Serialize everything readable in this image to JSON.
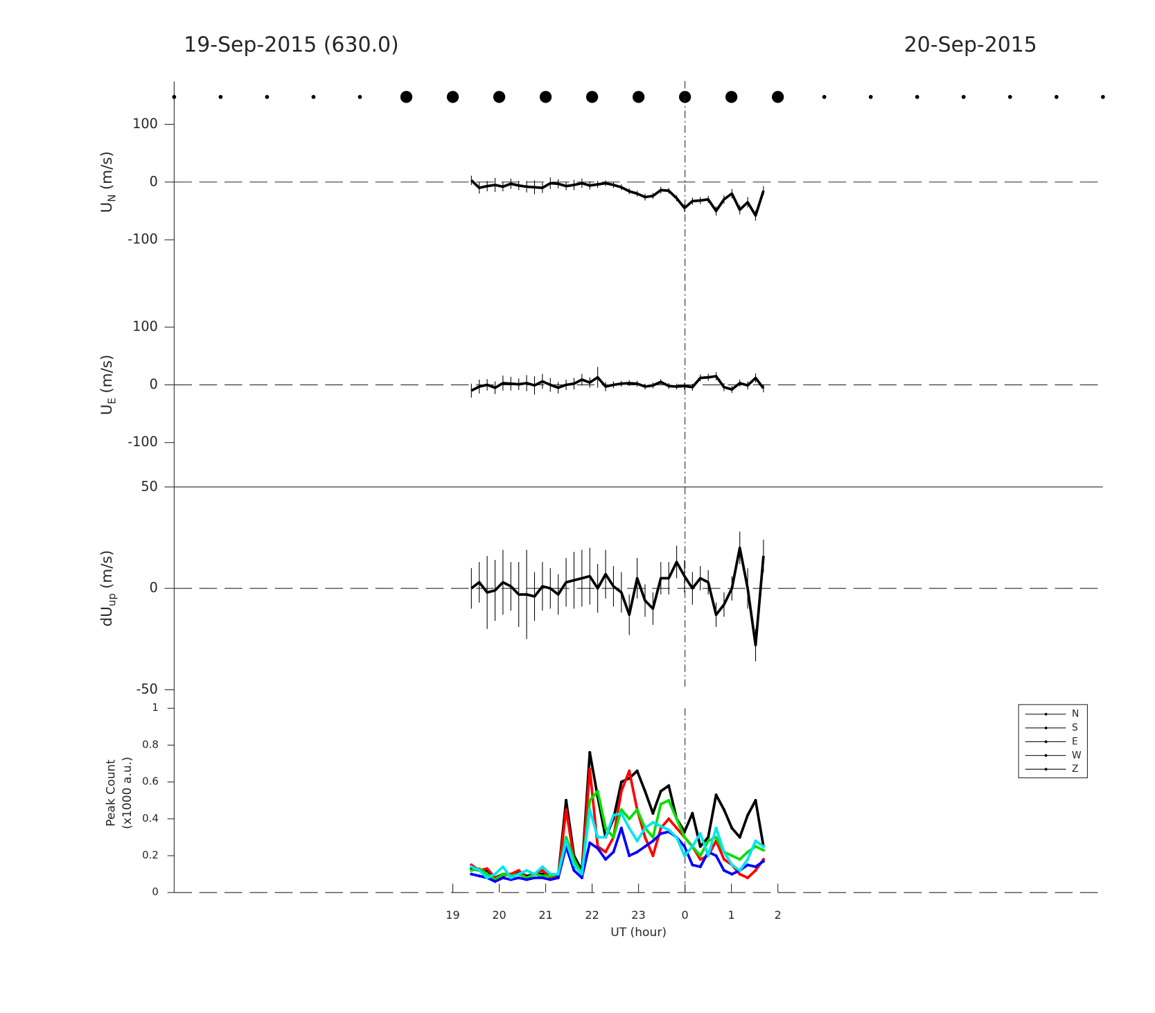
{
  "header": {
    "left": "19-Sep-2015 (630.0)",
    "right": "20-Sep-2015"
  },
  "chart_data": [
    {
      "type": "markers",
      "xlim": [
        13,
        33
      ],
      "x": [
        13,
        14,
        15,
        16,
        17,
        18,
        19,
        20,
        21,
        22,
        23,
        24,
        25,
        26,
        27,
        28,
        29,
        30,
        31,
        32,
        33
      ],
      "values": [
        1,
        1,
        1,
        1,
        1,
        3,
        3,
        3,
        3,
        3,
        3,
        3,
        3,
        3,
        1,
        1,
        1,
        1,
        1,
        1,
        1
      ],
      "color": "#000000"
    },
    {
      "type": "line",
      "ylabel": {
        "main": "U",
        "sub": "N",
        "unit": "(m/s)"
      },
      "xlim": [
        13,
        33
      ],
      "ylim": [
        -175,
        175
      ],
      "yticks": [
        -100,
        0,
        100
      ],
      "zero_line": true,
      "vline": 24,
      "x": [
        19.4,
        19.57,
        19.74,
        19.91,
        20.08,
        20.25,
        20.42,
        20.59,
        20.76,
        20.93,
        21.1,
        21.27,
        21.44,
        21.61,
        21.78,
        21.95,
        22.12,
        22.29,
        22.46,
        22.63,
        22.8,
        22.97,
        23.14,
        23.31,
        23.48,
        23.65,
        23.82,
        23.99,
        24.16,
        24.33,
        24.5,
        24.67,
        24.84,
        25.01,
        25.18,
        25.35,
        25.52,
        25.69
      ],
      "series": [
        {
          "color": "#000000",
          "values": [
            3,
            -10,
            -7,
            -5,
            -8,
            -3,
            -6,
            -8,
            -9,
            -10,
            -2,
            -3,
            -7,
            -5,
            -2,
            -6,
            -4,
            -2,
            -5,
            -9,
            -16,
            -20,
            -26,
            -24,
            -14,
            -15,
            -28,
            -45,
            -33,
            -32,
            -30,
            -50,
            -30,
            -20,
            -48,
            -35,
            -58,
            -15
          ],
          "errors": [
            8,
            10,
            9,
            12,
            8,
            9,
            8,
            10,
            12,
            9,
            10,
            8,
            7,
            9,
            8,
            7,
            6,
            5,
            5,
            5,
            5,
            5,
            6,
            5,
            6,
            5,
            5,
            7,
            6,
            6,
            6,
            8,
            7,
            8,
            8,
            9,
            9,
            8
          ]
        }
      ]
    },
    {
      "type": "line",
      "ylabel": {
        "main": "U",
        "sub": "E",
        "unit": "(m/s)"
      },
      "xlim": [
        13,
        33
      ],
      "ylim": [
        -175,
        175
      ],
      "yticks": [
        -100,
        0,
        100
      ],
      "zero_line": true,
      "vline": 24,
      "x": [
        19.4,
        19.57,
        19.74,
        19.91,
        20.08,
        20.25,
        20.42,
        20.59,
        20.76,
        20.93,
        21.1,
        21.27,
        21.44,
        21.61,
        21.78,
        21.95,
        22.12,
        22.29,
        22.46,
        22.63,
        22.8,
        22.97,
        23.14,
        23.31,
        23.48,
        23.65,
        23.82,
        23.99,
        24.16,
        24.33,
        24.5,
        24.67,
        24.84,
        25.01,
        25.18,
        25.35,
        25.52,
        25.69
      ],
      "series": [
        {
          "color": "#000000",
          "values": [
            -10,
            -3,
            0,
            -5,
            3,
            2,
            1,
            3,
            -1,
            6,
            0,
            -5,
            0,
            2,
            9,
            4,
            13,
            -3,
            0,
            2,
            3,
            2,
            -3,
            -1,
            5,
            -2,
            -3,
            -2,
            -4,
            12,
            13,
            15,
            -4,
            -8,
            3,
            -1,
            12,
            -6
          ],
          "errors": [
            12,
            12,
            10,
            11,
            13,
            12,
            10,
            14,
            16,
            13,
            12,
            10,
            9,
            10,
            10,
            9,
            18,
            8,
            6,
            5,
            5,
            5,
            5,
            5,
            5,
            5,
            5,
            6,
            6,
            6,
            6,
            7,
            7,
            6,
            6,
            7,
            8,
            7
          ]
        }
      ]
    },
    {
      "type": "line",
      "ylabel": {
        "main": "dU",
        "sub": "up",
        "unit": "(m/s)"
      },
      "xlim": [
        13,
        33
      ],
      "ylim": [
        -50,
        50
      ],
      "yticks": [
        -50,
        0,
        50
      ],
      "zero_line": true,
      "vline": 24,
      "x": [
        19.4,
        19.57,
        19.74,
        19.91,
        20.08,
        20.25,
        20.42,
        20.59,
        20.76,
        20.93,
        21.1,
        21.27,
        21.44,
        21.61,
        21.78,
        21.95,
        22.12,
        22.29,
        22.46,
        22.63,
        22.8,
        22.97,
        23.14,
        23.31,
        23.48,
        23.65,
        23.82,
        23.99,
        24.16,
        24.33,
        24.5,
        24.67,
        24.84,
        25.01,
        25.18,
        25.35,
        25.52,
        25.69
      ],
      "series": [
        {
          "color": "#000000",
          "values": [
            0,
            3,
            -2,
            -1,
            3,
            1,
            -3,
            -3,
            -4,
            1,
            0,
            -3,
            3,
            4,
            5,
            6,
            0,
            7,
            1,
            -2,
            -13,
            5,
            -6,
            -10,
            5,
            5,
            13,
            6,
            0,
            5,
            3,
            -13,
            -8,
            0,
            20,
            0,
            -28,
            16
          ],
          "errors": [
            10,
            10,
            18,
            15,
            16,
            12,
            16,
            22,
            12,
            12,
            10,
            10,
            12,
            14,
            14,
            14,
            12,
            12,
            10,
            10,
            10,
            10,
            8,
            8,
            8,
            8,
            8,
            8,
            8,
            6,
            6,
            6,
            6,
            6,
            8,
            10,
            8,
            8
          ]
        }
      ]
    },
    {
      "type": "line",
      "ylabel": {
        "lines": [
          "Peak Count",
          "(x1000 a.u.)"
        ]
      },
      "xlim": [
        13,
        33
      ],
      "ylim": [
        0,
        1
      ],
      "yticks": [
        0,
        0.2,
        0.4,
        0.6,
        0.8,
        1
      ],
      "zero_line": true,
      "vline": 24,
      "xlabel": "UT (hour)",
      "xticks": [
        19,
        20,
        21,
        22,
        23,
        {
          "value": 24,
          "label": "0"
        },
        {
          "value": 25,
          "label": "1"
        },
        {
          "value": 26,
          "label": "2"
        }
      ],
      "legend": "upper right",
      "legend_line_color": "#000000",
      "x": [
        19.4,
        19.57,
        19.74,
        19.91,
        20.08,
        20.25,
        20.42,
        20.59,
        20.76,
        20.93,
        21.1,
        21.27,
        21.44,
        21.61,
        21.78,
        21.95,
        22.12,
        22.29,
        22.46,
        22.63,
        22.8,
        22.97,
        23.14,
        23.31,
        23.48,
        23.65,
        23.82,
        23.99,
        24.16,
        24.33,
        24.5,
        24.67,
        24.84,
        25.01,
        25.18,
        25.35,
        25.52,
        25.69
      ],
      "series": [
        {
          "name": "N",
          "color": "#000000",
          "values": [
            0.13,
            0.12,
            0.12,
            0.08,
            0.1,
            0.1,
            0.11,
            0.09,
            0.1,
            0.1,
            0.1,
            0.09,
            0.5,
            0.2,
            0.12,
            0.76,
            0.52,
            0.3,
            0.4,
            0.6,
            0.62,
            0.66,
            0.55,
            0.43,
            0.55,
            0.58,
            0.4,
            0.33,
            0.43,
            0.25,
            0.3,
            0.53,
            0.45,
            0.35,
            0.3,
            0.42,
            0.5,
            0.25
          ]
        },
        {
          "name": "S",
          "color": "#ff0000",
          "values": [
            0.15,
            0.12,
            0.13,
            0.08,
            0.09,
            0.1,
            0.12,
            0.08,
            0.1,
            0.12,
            0.08,
            0.08,
            0.45,
            0.18,
            0.1,
            0.67,
            0.25,
            0.22,
            0.3,
            0.55,
            0.66,
            0.45,
            0.3,
            0.2,
            0.35,
            0.4,
            0.35,
            0.3,
            0.25,
            0.18,
            0.2,
            0.28,
            0.18,
            0.15,
            0.1,
            0.08,
            0.12,
            0.18
          ]
        },
        {
          "name": "E",
          "color": "#00e000",
          "values": [
            0.12,
            0.13,
            0.1,
            0.07,
            0.1,
            0.09,
            0.1,
            0.08,
            0.1,
            0.09,
            0.09,
            0.1,
            0.3,
            0.18,
            0.1,
            0.5,
            0.55,
            0.35,
            0.3,
            0.45,
            0.4,
            0.45,
            0.35,
            0.3,
            0.48,
            0.5,
            0.4,
            0.3,
            0.25,
            0.2,
            0.28,
            0.3,
            0.22,
            0.2,
            0.18,
            0.22,
            0.25,
            0.23
          ]
        },
        {
          "name": "W",
          "color": "#0000ff",
          "values": [
            0.1,
            0.09,
            0.08,
            0.06,
            0.08,
            0.07,
            0.08,
            0.07,
            0.08,
            0.08,
            0.07,
            0.08,
            0.25,
            0.12,
            0.08,
            0.27,
            0.24,
            0.18,
            0.22,
            0.35,
            0.2,
            0.22,
            0.25,
            0.28,
            0.32,
            0.33,
            0.3,
            0.25,
            0.15,
            0.14,
            0.22,
            0.2,
            0.12,
            0.1,
            0.12,
            0.15,
            0.14,
            0.17
          ]
        },
        {
          "name": "Z",
          "color": "#00e5ee",
          "values": [
            0.14,
            0.12,
            0.08,
            0.1,
            0.14,
            0.08,
            0.1,
            0.12,
            0.1,
            0.14,
            0.1,
            0.1,
            0.28,
            0.15,
            0.1,
            0.45,
            0.3,
            0.3,
            0.42,
            0.43,
            0.35,
            0.28,
            0.35,
            0.38,
            0.36,
            0.34,
            0.3,
            0.2,
            0.25,
            0.32,
            0.2,
            0.35,
            0.22,
            0.15,
            0.12,
            0.18,
            0.28,
            0.25
          ]
        }
      ]
    }
  ]
}
